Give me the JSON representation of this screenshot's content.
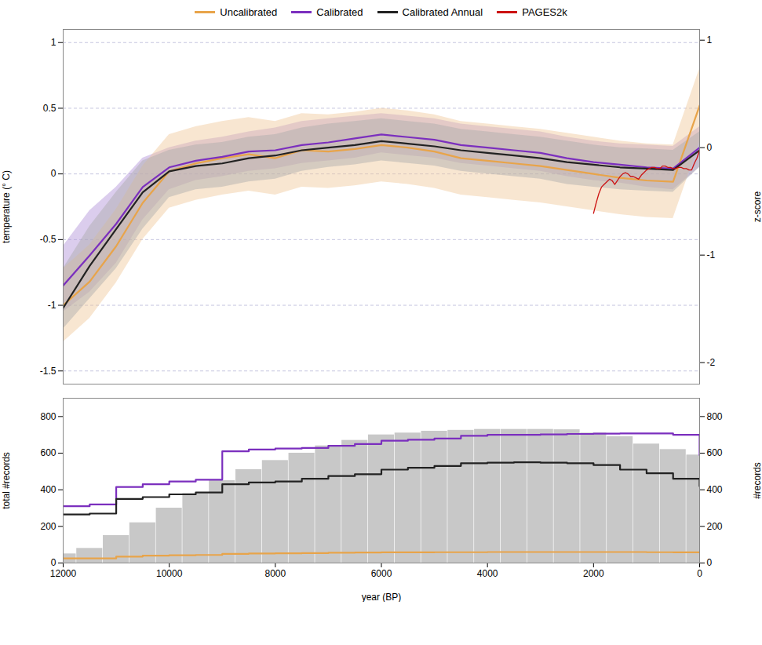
{
  "chart_data": [
    {
      "type": "line",
      "ylabel": "temperature (° C)",
      "y2label": "z-score",
      "xlim": [
        12000,
        0
      ],
      "ylim": [
        -1.6,
        1.1
      ],
      "yticks": [
        -1.5,
        -1,
        -0.5,
        0,
        0.5,
        1
      ],
      "y2lim": [
        -2.2,
        1.1
      ],
      "y2ticks": [
        -2,
        -1,
        0,
        1
      ],
      "grid": true,
      "legend": "top",
      "tick_labels": "y",
      "series": [
        {
          "type": "area",
          "color": "#b090d8",
          "x": [
            12000,
            11500,
            11000,
            10500,
            10000,
            9500,
            9000,
            8500,
            8000,
            7500,
            7000,
            6500,
            6000,
            5500,
            5000,
            4500,
            4000,
            3500,
            3000,
            2500,
            2000,
            1500,
            1000,
            500,
            0
          ],
          "lower": [
            -1.05,
            -0.9,
            -0.68,
            -0.35,
            -0.12,
            -0.05,
            -0.02,
            0.02,
            0.04,
            0.08,
            0.1,
            0.12,
            0.16,
            0.14,
            0.12,
            0.08,
            0.06,
            0.04,
            0.02,
            -0.02,
            -0.05,
            -0.07,
            -0.1,
            -0.12,
            0.05
          ],
          "upper": [
            -0.55,
            -0.28,
            -0.1,
            0.12,
            0.2,
            0.25,
            0.28,
            0.32,
            0.35,
            0.4,
            0.42,
            0.44,
            0.46,
            0.44,
            0.42,
            0.38,
            0.36,
            0.34,
            0.32,
            0.28,
            0.25,
            0.23,
            0.22,
            0.21,
            0.36
          ]
        },
        {
          "type": "area",
          "color": "#f0c898",
          "x": [
            12000,
            11500,
            11000,
            10500,
            10000,
            9500,
            9000,
            8500,
            8000,
            7500,
            7000,
            6500,
            6000,
            5500,
            5000,
            4500,
            4000,
            3500,
            3000,
            2500,
            2000,
            1500,
            1000,
            500,
            0
          ],
          "lower": [
            -1.28,
            -1.1,
            -0.83,
            -0.5,
            -0.26,
            -0.2,
            -0.16,
            -0.13,
            -0.16,
            -0.1,
            -0.11,
            -0.09,
            -0.06,
            -0.08,
            -0.11,
            -0.16,
            -0.18,
            -0.2,
            -0.22,
            -0.25,
            -0.28,
            -0.31,
            -0.33,
            -0.34,
            0.24
          ],
          "upper": [
            -0.72,
            -0.54,
            -0.27,
            0.06,
            0.3,
            0.36,
            0.4,
            0.43,
            0.4,
            0.46,
            0.45,
            0.47,
            0.5,
            0.48,
            0.45,
            0.4,
            0.38,
            0.36,
            0.34,
            0.31,
            0.28,
            0.25,
            0.23,
            0.22,
            0.8
          ]
        },
        {
          "type": "area",
          "color": "#aaaaaa",
          "x": [
            12000,
            11500,
            11000,
            10500,
            10000,
            9500,
            9000,
            8500,
            8000,
            7500,
            7000,
            6500,
            6000,
            5500,
            5000,
            4500,
            4000,
            3500,
            3000,
            2500,
            2000,
            1500,
            1000,
            500,
            0
          ],
          "lower": [
            -1.18,
            -0.95,
            -0.72,
            -0.42,
            -0.18,
            -0.12,
            -0.1,
            -0.06,
            -0.04,
            0.02,
            0.05,
            0.07,
            0.1,
            0.08,
            0.06,
            0.02,
            0.0,
            -0.02,
            -0.04,
            -0.08,
            -0.1,
            -0.12,
            -0.13,
            -0.14,
            0.05
          ],
          "upper": [
            -0.72,
            -0.4,
            -0.14,
            0.1,
            0.18,
            0.22,
            0.24,
            0.28,
            0.3,
            0.35,
            0.38,
            0.4,
            0.42,
            0.4,
            0.38,
            0.34,
            0.32,
            0.3,
            0.28,
            0.25,
            0.22,
            0.2,
            0.19,
            0.18,
            0.32
          ]
        },
        {
          "type": "line",
          "name": "Uncalibrated",
          "color": "#e8a44a",
          "x": [
            12000,
            11500,
            11000,
            10500,
            10000,
            9500,
            9000,
            8500,
            8000,
            7500,
            7000,
            6500,
            6000,
            5500,
            5000,
            4500,
            4000,
            3500,
            3000,
            2500,
            2000,
            1500,
            1000,
            500,
            0
          ],
          "values": [
            -1.0,
            -0.82,
            -0.55,
            -0.22,
            0.02,
            0.08,
            0.12,
            0.15,
            0.12,
            0.18,
            0.17,
            0.19,
            0.22,
            0.2,
            0.17,
            0.12,
            0.1,
            0.08,
            0.06,
            0.03,
            0.0,
            -0.03,
            -0.05,
            -0.06,
            0.52
          ]
        },
        {
          "type": "line",
          "name": "Calibrated",
          "color": "#7b2fbe",
          "x": [
            12000,
            11500,
            11000,
            10500,
            10000,
            9500,
            9000,
            8500,
            8000,
            7500,
            7000,
            6500,
            6000,
            5500,
            5000,
            4500,
            4000,
            3500,
            3000,
            2500,
            2000,
            1500,
            1000,
            500,
            0
          ],
          "values": [
            -0.85,
            -0.62,
            -0.38,
            -0.1,
            0.05,
            0.1,
            0.13,
            0.17,
            0.18,
            0.22,
            0.24,
            0.27,
            0.3,
            0.28,
            0.26,
            0.22,
            0.2,
            0.18,
            0.16,
            0.12,
            0.09,
            0.07,
            0.05,
            0.04,
            0.2
          ]
        },
        {
          "type": "line",
          "name": "Calibrated Annual",
          "color": "#222222",
          "x": [
            12000,
            11500,
            11000,
            10500,
            10000,
            9500,
            9000,
            8500,
            8000,
            7500,
            7000,
            6500,
            6000,
            5500,
            5000,
            4500,
            4000,
            3500,
            3000,
            2500,
            2000,
            1500,
            1000,
            500,
            0
          ],
          "values": [
            -1.02,
            -0.7,
            -0.42,
            -0.14,
            0.02,
            0.06,
            0.08,
            0.12,
            0.14,
            0.18,
            0.2,
            0.22,
            0.25,
            0.23,
            0.21,
            0.18,
            0.16,
            0.14,
            0.12,
            0.09,
            0.07,
            0.05,
            0.04,
            0.03,
            0.18
          ]
        },
        {
          "type": "line",
          "name": "PAGES2k",
          "color": "#cc1111",
          "x": [
            2000,
            1950,
            1900,
            1850,
            1800,
            1750,
            1700,
            1650,
            1600,
            1550,
            1500,
            1450,
            1400,
            1350,
            1300,
            1250,
            1200,
            1150,
            1100,
            1050,
            1000,
            950,
            900,
            850,
            800,
            750,
            700,
            650,
            600,
            550,
            500,
            450,
            400,
            350,
            300,
            250,
            200,
            150,
            100,
            50,
            0
          ],
          "values": [
            -0.3,
            -0.22,
            -0.15,
            -0.1,
            -0.08,
            -0.06,
            -0.04,
            -0.05,
            -0.08,
            -0.05,
            -0.02,
            0.0,
            0.01,
            0.0,
            -0.02,
            -0.02,
            -0.03,
            -0.04,
            -0.01,
            0.01,
            0.03,
            0.04,
            0.05,
            0.05,
            0.04,
            0.04,
            0.06,
            0.06,
            0.05,
            0.05,
            0.04,
            0.04,
            0.05,
            0.05,
            0.04,
            0.04,
            0.03,
            0.03,
            0.08,
            0.12,
            0.18
          ]
        }
      ]
    },
    {
      "type": "bar",
      "xlabel": "year (BP)",
      "ylabel": "total #records",
      "y2label": "#records",
      "xlim": [
        12000,
        0
      ],
      "xticks": [
        12000,
        10000,
        8000,
        6000,
        4000,
        2000,
        0
      ],
      "ylim": [
        0,
        900
      ],
      "yticks": [
        0,
        200,
        400,
        600,
        800
      ],
      "y2lim": [
        0,
        900
      ],
      "y2ticks": [
        0,
        200,
        400,
        600,
        800
      ],
      "grid": false,
      "series": [
        {
          "type": "bar",
          "color": "#c8c8c8",
          "x": [
            12000,
            11500,
            11000,
            10500,
            10000,
            9500,
            9000,
            8500,
            8000,
            7500,
            7000,
            6500,
            6000,
            5500,
            5000,
            4500,
            4000,
            3500,
            3000,
            2500,
            2000,
            1500,
            1000,
            500,
            0
          ],
          "values": [
            50,
            80,
            150,
            220,
            300,
            380,
            450,
            510,
            560,
            600,
            640,
            670,
            700,
            710,
            720,
            725,
            730,
            730,
            730,
            728,
            710,
            690,
            650,
            620,
            590
          ]
        },
        {
          "type": "step",
          "axis": "y2",
          "color": "#7b2fbe",
          "x": [
            12000,
            11500,
            11000,
            10500,
            10000,
            9500,
            9000,
            8500,
            8000,
            7500,
            7000,
            6500,
            6000,
            5500,
            5000,
            4500,
            4000,
            3500,
            3000,
            2500,
            2000,
            1500,
            1000,
            500,
            0
          ],
          "values": [
            310,
            320,
            415,
            430,
            445,
            455,
            610,
            620,
            625,
            628,
            640,
            650,
            668,
            673,
            680,
            695,
            700,
            700,
            702,
            705,
            707,
            708,
            708,
            700,
            590
          ]
        },
        {
          "type": "step",
          "axis": "y2",
          "color": "#222222",
          "x": [
            12000,
            11500,
            11000,
            10500,
            10000,
            9500,
            9000,
            8500,
            8000,
            7500,
            7000,
            6500,
            6000,
            5500,
            5000,
            4500,
            4000,
            3500,
            3000,
            2500,
            2000,
            1500,
            1000,
            500,
            0
          ],
          "values": [
            265,
            270,
            350,
            360,
            375,
            385,
            430,
            440,
            445,
            460,
            475,
            485,
            510,
            520,
            530,
            545,
            548,
            550,
            548,
            545,
            535,
            510,
            490,
            460,
            420
          ]
        },
        {
          "type": "step",
          "axis": "y2",
          "color": "#e8a44a",
          "x": [
            12000,
            11500,
            11000,
            10500,
            10000,
            9500,
            9000,
            8500,
            8000,
            7500,
            7000,
            6500,
            6000,
            5500,
            5000,
            4500,
            4000,
            3500,
            3000,
            2500,
            2000,
            1500,
            1000,
            500,
            0
          ],
          "values": [
            25,
            25,
            35,
            40,
            42,
            44,
            50,
            52,
            53,
            54,
            56,
            57,
            58,
            58,
            59,
            59,
            60,
            60,
            60,
            60,
            60,
            60,
            59,
            58,
            57
          ]
        }
      ]
    }
  ]
}
